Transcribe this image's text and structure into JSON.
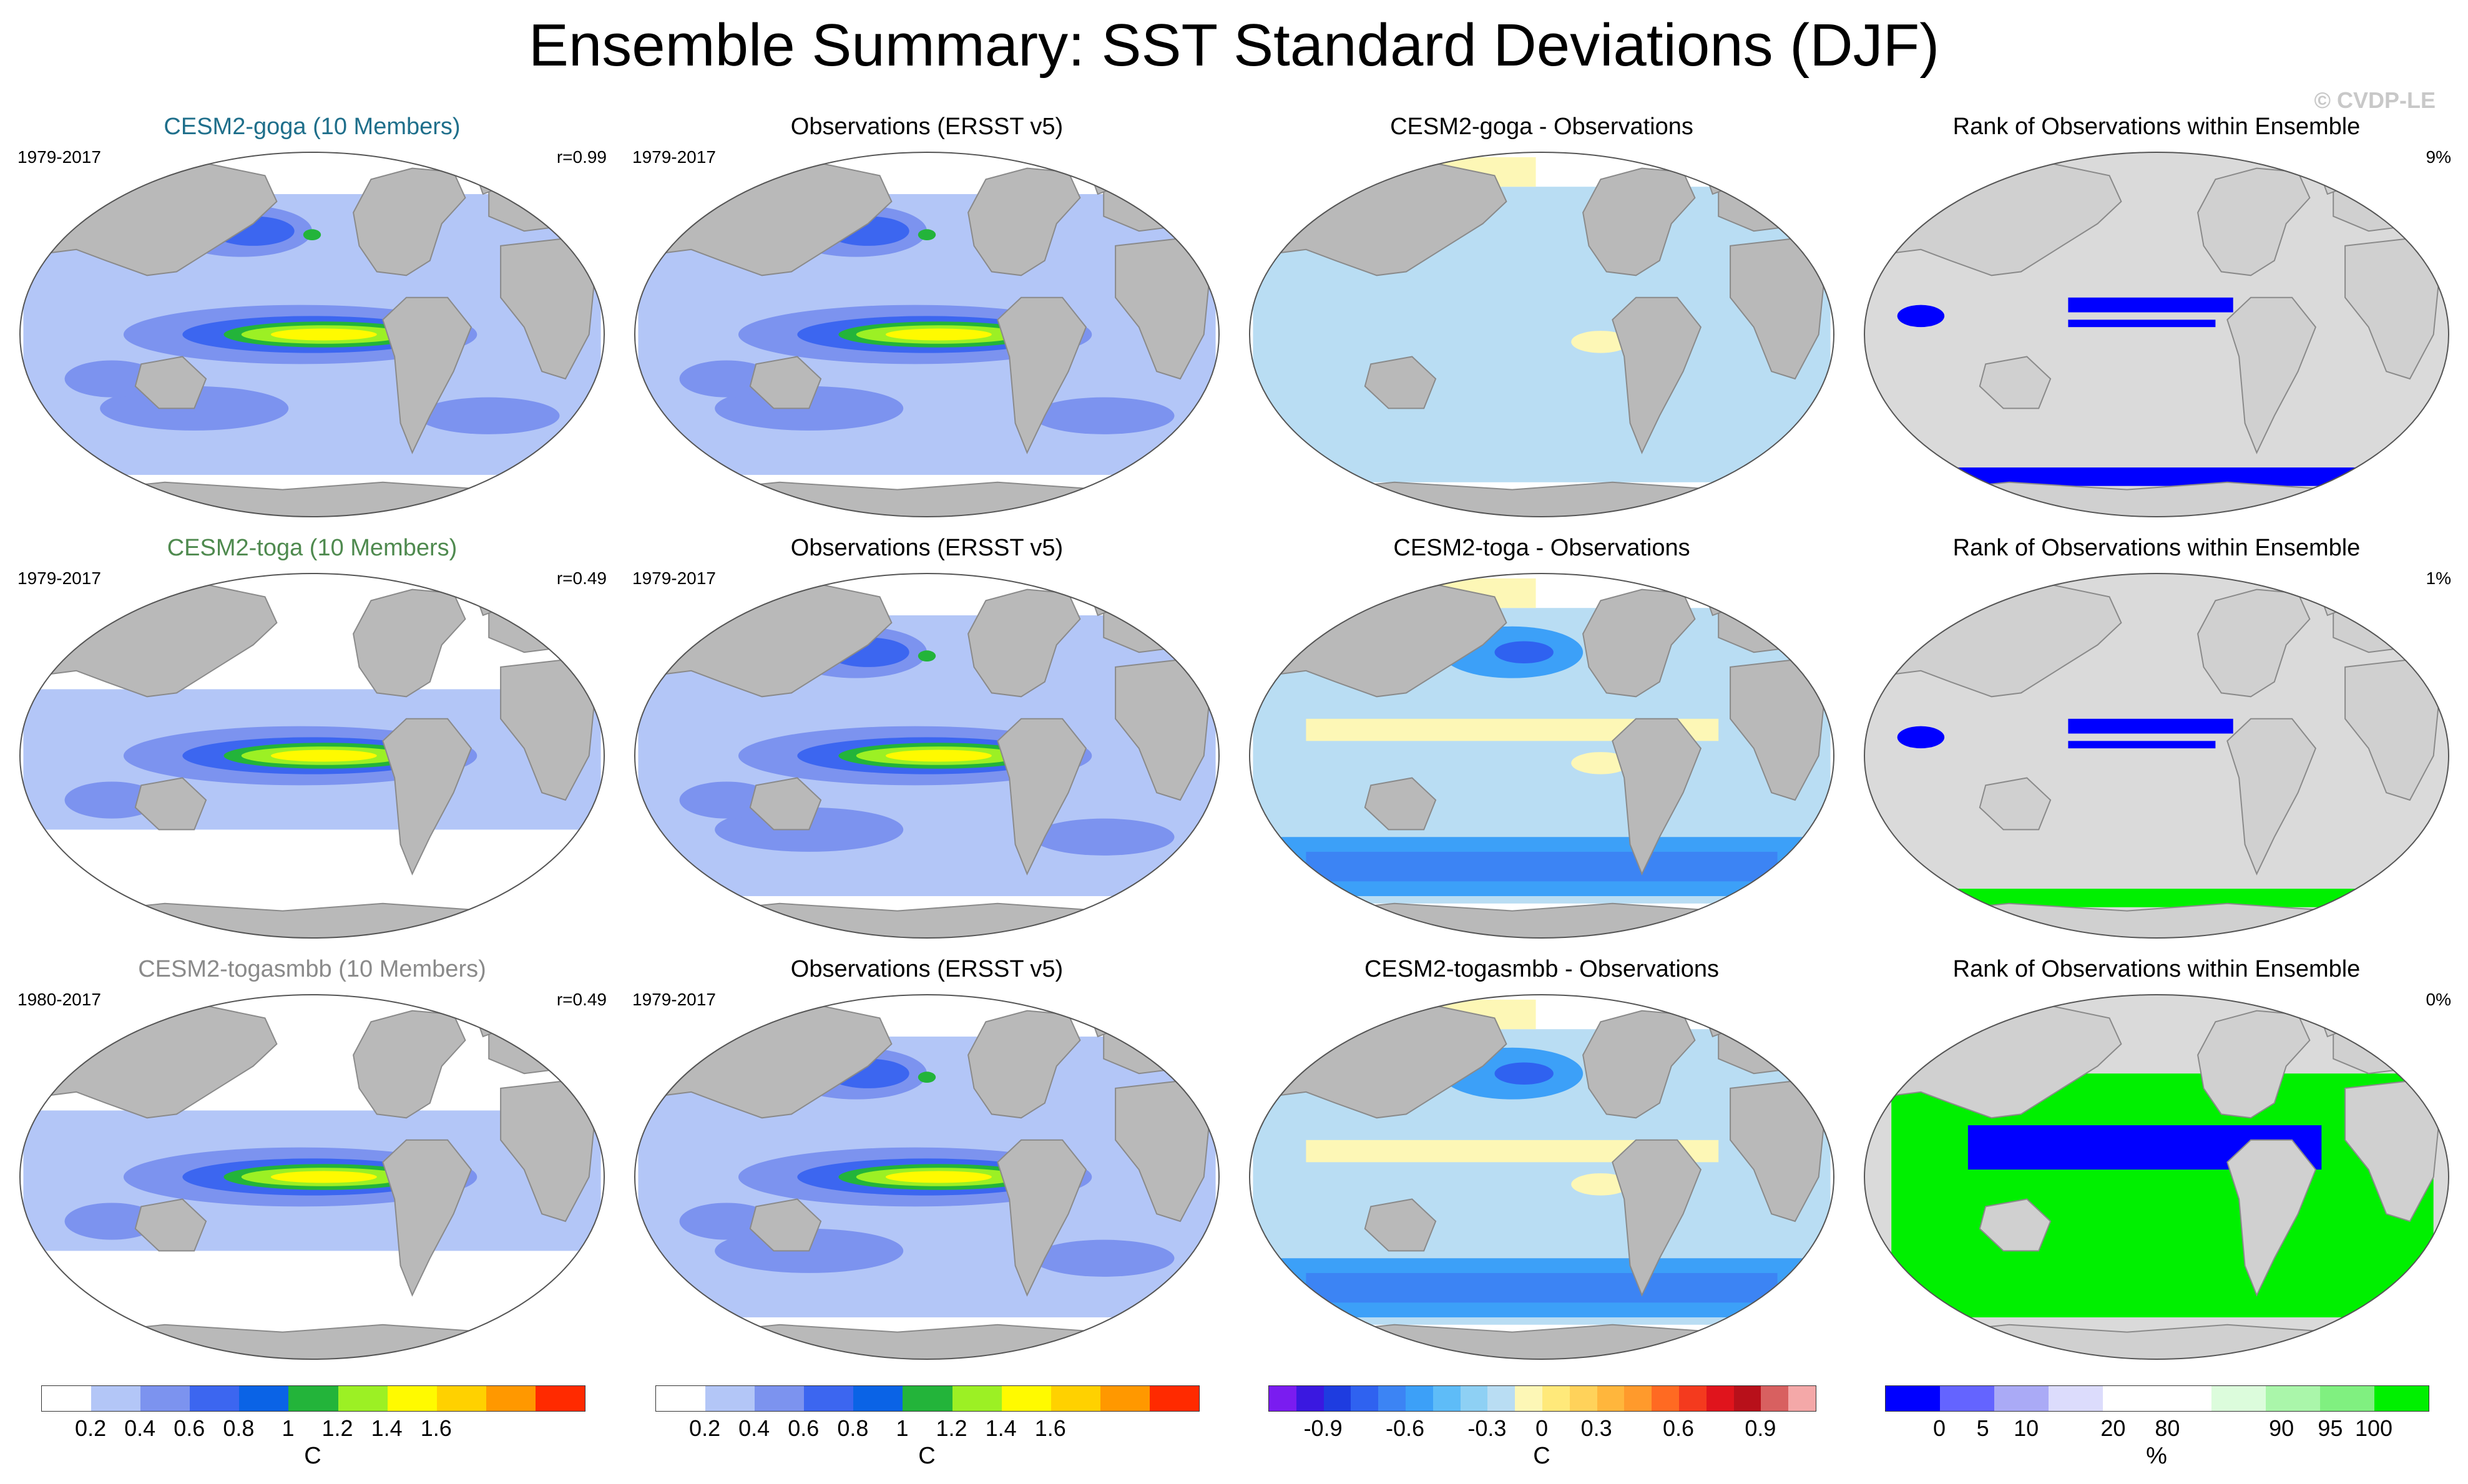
{
  "title": "Ensemble Summary: SST Standard Deviations (DJF)",
  "watermark": "© CVDP-LE",
  "colors": {
    "land": "#b9b9b9",
    "ocean_gray": "#dadada",
    "white": "#ffffff",
    "coast": "#8a8a8a"
  },
  "rows": [
    {
      "ens_title": "CESM2-goga (10 Members)",
      "ens_color": "#1f6f8b",
      "ens_years": "1979-2017",
      "ens_r": "r=0.99",
      "obs_title": "Observations (ERSST v5)",
      "obs_years": "1979-2017",
      "diff_title": "CESM2-goga - Observations",
      "rank_title": "Rank of Observations within Ensemble",
      "rank_pct": "9%"
    },
    {
      "ens_title": "CESM2-toga (10 Members)",
      "ens_color": "#4f8a4f",
      "ens_years": "1979-2017",
      "ens_r": "r=0.49",
      "obs_title": "Observations (ERSST v5)",
      "obs_years": "1979-2017",
      "diff_title": "CESM2-toga - Observations",
      "rank_title": "Rank of Observations within Ensemble",
      "rank_pct": "1%"
    },
    {
      "ens_title": "CESM2-togasmbb (10 Members)",
      "ens_color": "#8a8a8a",
      "ens_years": "1980-2017",
      "ens_r": "r=0.49",
      "obs_title": "Observations (ERSST v5)",
      "obs_years": "1979-2017",
      "diff_title": "CESM2-togasmbb - Observations",
      "rank_title": "Rank of Observations within Ensemble",
      "rank_pct": "0%"
    }
  ],
  "colorbars": {
    "sd": {
      "colors": [
        "#ffffff",
        "#b3c6f7",
        "#7c93ef",
        "#3c66f0",
        "#0a63e6",
        "#23b43a",
        "#9cf024",
        "#fffa00",
        "#ffd100",
        "#ff9800",
        "#ff2a00"
      ],
      "labels": [
        "0.2",
        "0.4",
        "0.6",
        "0.8",
        "1",
        "1.2",
        "1.4",
        "1.6"
      ],
      "unit": "C"
    },
    "diff": {
      "colors": [
        "#7a1cf0",
        "#3a18e0",
        "#1e3ce0",
        "#2f62f0",
        "#3c84f4",
        "#3ca0f8",
        "#5ebcf8",
        "#8ed0f4",
        "#b9ddf3",
        "#fdf7b6",
        "#ffe97a",
        "#ffd25a",
        "#ffb63c",
        "#ff9a2c",
        "#ff6a22",
        "#f43a1e",
        "#e0141c",
        "#b8101a",
        "#d86060",
        "#f4a8a8"
      ],
      "labels": [
        "-0.9",
        "-0.6",
        "-0.3",
        "0",
        "0.3",
        "0.6",
        "0.9"
      ],
      "unit": "C"
    },
    "rank": {
      "colors": [
        "#0000ff",
        "#6464ff",
        "#aaaaf6",
        "#dcdcfc",
        "#ffffff",
        "#ffffff",
        "#dcfcdc",
        "#aaf6aa",
        "#80f080",
        "#00f000"
      ],
      "labels": [
        "0",
        "5",
        "10",
        "20",
        "80",
        "90",
        "95",
        "100"
      ],
      "unit": "%"
    }
  },
  "chart_data": {
    "type": "heatmap",
    "description_fields": "global SST standard deviation maps (Robinson-like projection)",
    "rows": 3,
    "columns": [
      "Ensemble mean",
      "Observations",
      "Difference",
      "Rank"
    ],
    "panels": [
      {
        "title": "CESM2-goga (10 Members)",
        "period": "1979-2017",
        "pattern_correlation": 0.99
      },
      {
        "title": "Observations (ERSST v5)",
        "period": "1979-2017"
      },
      {
        "title": "CESM2-goga - Observations"
      },
      {
        "title": "Rank of Observations within Ensemble",
        "percent": 9
      },
      {
        "title": "CESM2-toga (10 Members)",
        "period": "1979-2017",
        "pattern_correlation": 0.49
      },
      {
        "title": "Observations (ERSST v5)",
        "period": "1979-2017"
      },
      {
        "title": "CESM2-toga - Observations"
      },
      {
        "title": "Rank of Observations within Ensemble",
        "percent": 1
      },
      {
        "title": "CESM2-togasmbb (10 Members)",
        "period": "1980-2017",
        "pattern_correlation": 0.49
      },
      {
        "title": "Observations (ERSST v5)",
        "period": "1979-2017"
      },
      {
        "title": "CESM2-togasmbb - Observations"
      },
      {
        "title": "Rank of Observations within Ensemble",
        "percent": 0
      }
    ],
    "sd_levels_C": [
      0.2,
      0.4,
      0.6,
      0.8,
      1,
      1.2,
      1.4,
      1.6
    ],
    "diff_levels_C": [
      -0.9,
      -0.6,
      -0.3,
      0,
      0.3,
      0.6,
      0.9
    ],
    "rank_levels_pct": [
      0,
      5,
      10,
      20,
      80,
      90,
      95,
      100
    ]
  }
}
